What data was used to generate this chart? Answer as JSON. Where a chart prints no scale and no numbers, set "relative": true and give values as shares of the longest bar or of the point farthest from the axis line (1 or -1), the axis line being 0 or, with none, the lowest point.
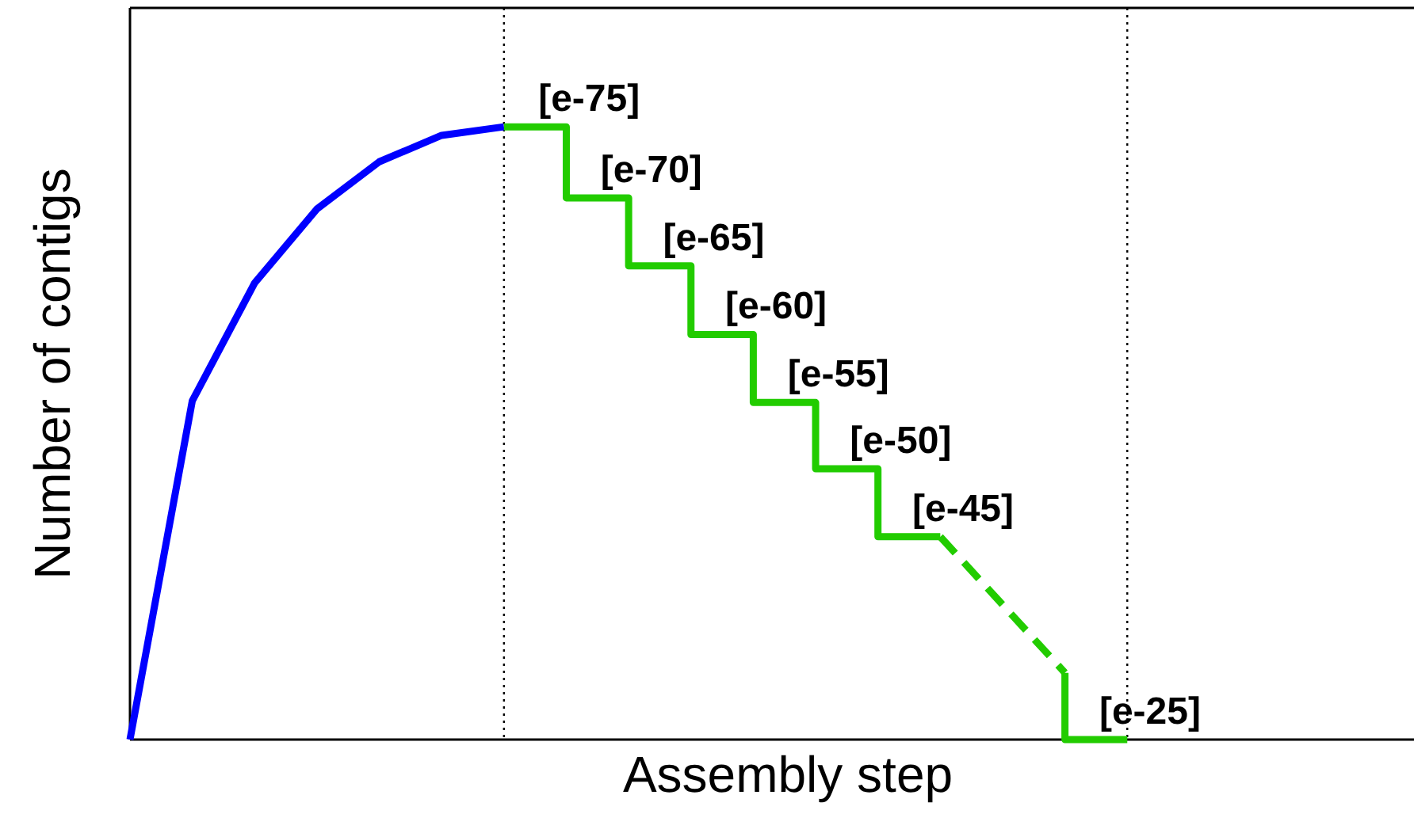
{
  "chart_data": {
    "type": "line",
    "relative": true,
    "xlabel": "Assembly step",
    "ylabel": "Number of contigs",
    "categories": [
      null,
      null,
      null,
      null,
      null,
      null,
      null,
      null,
      null,
      null,
      null,
      null,
      null,
      null,
      null,
      null,
      null
    ],
    "series": [
      {
        "color": "#0000ff",
        "line_style": "solid",
        "values": [
          0,
          0.553,
          0.745,
          0.866,
          0.943,
          0.986,
          1,
          null,
          null,
          null,
          null,
          null,
          null,
          null,
          null,
          null,
          null
        ]
      },
      {
        "type": "step",
        "color": "#22cc00",
        "line_style": "solid",
        "values": [
          null,
          null,
          null,
          null,
          null,
          null,
          1,
          1,
          0.884,
          0.773,
          0.661,
          0.55,
          0.442,
          0.331,
          null,
          null,
          null
        ]
      },
      {
        "color": "#22cc00",
        "line_style": "dashed",
        "values": [
          null,
          null,
          null,
          null,
          null,
          null,
          null,
          null,
          null,
          null,
          null,
          null,
          null,
          0.331,
          0.22,
          0.109,
          null
        ]
      },
      {
        "type": "step",
        "color": "#22cc00",
        "line_style": "solid",
        "values": [
          null,
          null,
          null,
          null,
          null,
          null,
          null,
          null,
          null,
          null,
          null,
          null,
          null,
          null,
          null,
          0.109,
          0
        ]
      }
    ],
    "annotations": [
      "[e-75]",
      "[e-70]",
      "[e-65]",
      "[e-60]",
      "[e-55]",
      "[e-50]",
      "[e-45]",
      "[e-25]"
    ]
  }
}
